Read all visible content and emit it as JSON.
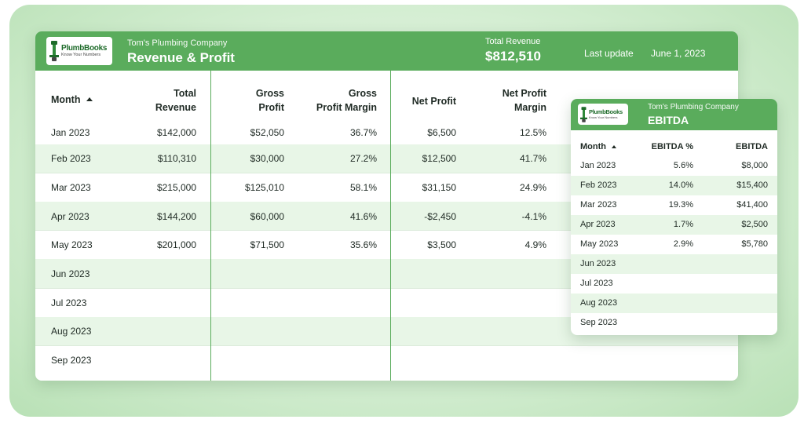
{
  "brand": {
    "logo_name": "PlumbBooks",
    "logo_tagline": "Know Your Numbers"
  },
  "main": {
    "company": "Tom's Plumbing Company",
    "title": "Revenue & Profit",
    "total_revenue_label": "Total Revenue",
    "total_revenue_value": "$812,510",
    "last_update_label": "Last update",
    "last_update_value": "June 1, 2023",
    "headers": {
      "month": "Month",
      "total_revenue": [
        "Total",
        "Revenue"
      ],
      "gross_profit": [
        "Gross",
        "Profit"
      ],
      "gross_profit_margin": [
        "Gross",
        "Profit Margin"
      ],
      "net_profit": "Net Profit",
      "net_profit_margin": [
        "Net Profit",
        "Margin"
      ]
    },
    "rows": [
      {
        "month": "Jan 2023",
        "total_revenue": "$142,000",
        "gross_profit": "$52,050",
        "gross_margin": "36.7%",
        "net_profit": "$6,500",
        "net_margin": "12.5%"
      },
      {
        "month": "Feb 2023",
        "total_revenue": "$110,310",
        "gross_profit": "$30,000",
        "gross_margin": "27.2%",
        "net_profit": "$12,500",
        "net_margin": "41.7%"
      },
      {
        "month": "Mar 2023",
        "total_revenue": "$215,000",
        "gross_profit": "$125,010",
        "gross_margin": "58.1%",
        "net_profit": "$31,150",
        "net_margin": "24.9%"
      },
      {
        "month": "Apr 2023",
        "total_revenue": "$144,200",
        "gross_profit": "$60,000",
        "gross_margin": "41.6%",
        "net_profit": "-$2,450",
        "net_margin": "-4.1%"
      },
      {
        "month": "May 2023",
        "total_revenue": "$201,000",
        "gross_profit": "$71,500",
        "gross_margin": "35.6%",
        "net_profit": "$3,500",
        "net_margin": "4.9%"
      },
      {
        "month": "Jun 2023",
        "total_revenue": "",
        "gross_profit": "",
        "gross_margin": "",
        "net_profit": "",
        "net_margin": ""
      },
      {
        "month": "Jul 2023",
        "total_revenue": "",
        "gross_profit": "",
        "gross_margin": "",
        "net_profit": "",
        "net_margin": ""
      },
      {
        "month": "Aug 2023",
        "total_revenue": "",
        "gross_profit": "",
        "gross_margin": "",
        "net_profit": "",
        "net_margin": ""
      },
      {
        "month": "Sep 2023",
        "total_revenue": "",
        "gross_profit": "",
        "gross_margin": "",
        "net_profit": "",
        "net_margin": ""
      }
    ]
  },
  "ebitda": {
    "company": "Tom's Plumbing Company",
    "title": "EBITDA",
    "headers": {
      "month": "Month",
      "ebitda_pct": "EBITDA %",
      "ebitda": "EBITDA"
    },
    "rows": [
      {
        "month": "Jan 2023",
        "ebitda_pct": "5.6%",
        "ebitda": "$8,000"
      },
      {
        "month": "Feb 2023",
        "ebitda_pct": "14.0%",
        "ebitda": "$15,400"
      },
      {
        "month": "Mar 2023",
        "ebitda_pct": "19.3%",
        "ebitda": "$41,400"
      },
      {
        "month": "Apr 2023",
        "ebitda_pct": "1.7%",
        "ebitda": "$2,500"
      },
      {
        "month": "May 2023",
        "ebitda_pct": "2.9%",
        "ebitda": "$5,780"
      },
      {
        "month": "Jun 2023",
        "ebitda_pct": "",
        "ebitda": ""
      },
      {
        "month": "Jul 2023",
        "ebitda_pct": "",
        "ebitda": ""
      },
      {
        "month": "Aug 2023",
        "ebitda_pct": "",
        "ebitda": ""
      },
      {
        "month": "Sep 2023",
        "ebitda_pct": "",
        "ebitda": ""
      }
    ]
  },
  "colors": {
    "header_green": "#5aac5c",
    "row_alt": "#e8f6e7",
    "text_dark": "#1f2a24",
    "backdrop": "#d5eed3"
  },
  "icons": {
    "logo": "plumbbooks-logo-icon",
    "sort": "sort-ascending-icon"
  }
}
